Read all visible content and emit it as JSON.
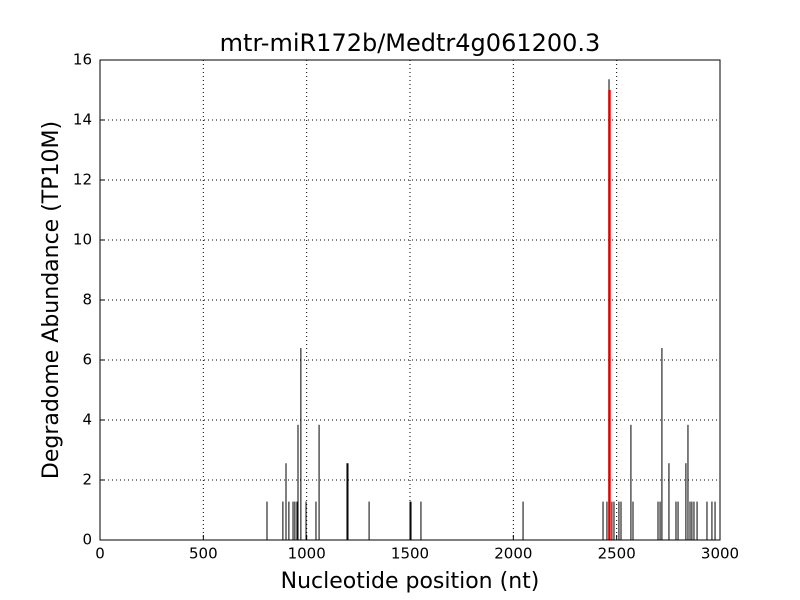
{
  "chart_data": {
    "type": "stem",
    "title": "mtr-miR172b/Medtr4g061200.3",
    "x_label": "Nucleotide position (nt)",
    "y_label": "Degradome Abundance (TP10M)",
    "xlim": [
      0,
      3000
    ],
    "xticks": [
      0,
      500,
      1000,
      1500,
      2000,
      2500,
      3000
    ],
    "ylim": [
      0,
      16
    ],
    "yticks": [
      0,
      2,
      4,
      6,
      8,
      10,
      12,
      14,
      16
    ],
    "grid": true,
    "series": [
      {
        "color": "#000000",
        "width": 1,
        "x": [
          808,
          885,
          900,
          914,
          934,
          943,
          953,
          958,
          972,
          997,
          1045,
          1060,
          1195,
          1200,
          1302,
          1500,
          1505,
          1553,
          2047,
          2434,
          2453,
          2463,
          2477,
          2487,
          2511,
          2521,
          2569,
          2579,
          2700,
          2710,
          2719,
          2753,
          2787,
          2797,
          2835,
          2845,
          2855,
          2864,
          2874,
          2889,
          2937,
          2961,
          2976
        ],
        "values": [
          1.28,
          1.28,
          2.56,
          1.28,
          1.28,
          1.28,
          1.28,
          3.84,
          6.4,
          1.28,
          1.28,
          3.84,
          2.56,
          2.56,
          1.28,
          1.28,
          1.28,
          1.28,
          1.28,
          1.28,
          1.28,
          15.36,
          1.28,
          1.28,
          1.28,
          1.28,
          3.84,
          1.28,
          1.28,
          1.28,
          6.4,
          2.56,
          1.28,
          1.28,
          2.56,
          3.84,
          1.28,
          1.28,
          1.28,
          1.28,
          1.28,
          1.28,
          1.28
        ]
      },
      {
        "color": "#e00000",
        "width": 2.5,
        "x": [
          2465
        ],
        "values": [
          15
        ]
      }
    ]
  }
}
